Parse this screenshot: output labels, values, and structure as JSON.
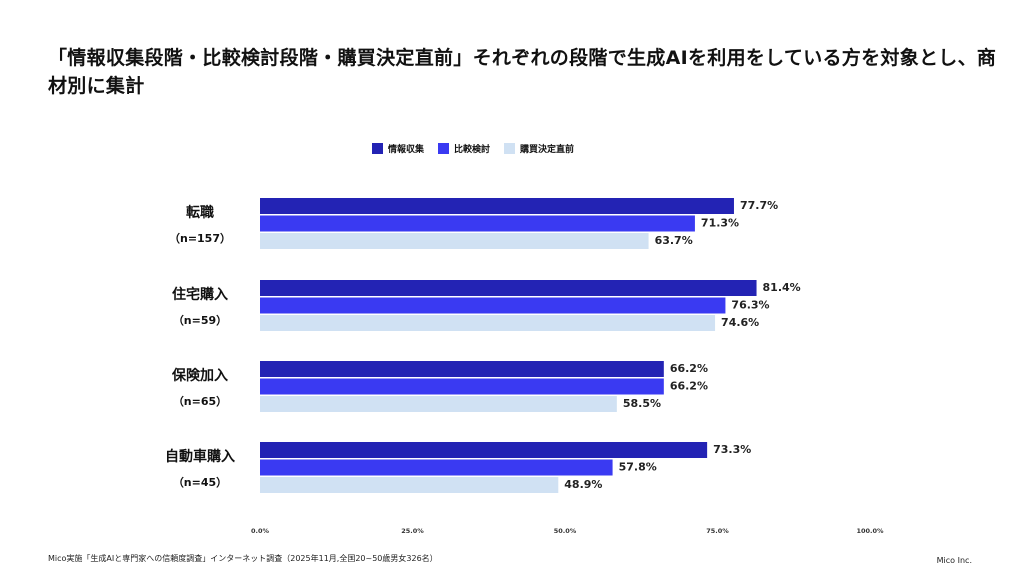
{
  "title": "「情報収集段階・比較検討段階・購買決定直前」それぞれの段階で生成AIを利用をしている方を対象とし、商材別に集計",
  "footer": "Mico実施「生成AIと専門家への信頼度調査」インターネット調査（2025年11月,全国20~50歳男女326名）",
  "brand": "Mico Inc.",
  "chart_data": {
    "type": "bar",
    "orientation": "horizontal",
    "categories": [
      "転職",
      "住宅購入",
      "保険加入",
      "自動車購入"
    ],
    "sample_sizes": [
      "（n=157）",
      "（n=59）",
      "（n=65）",
      "（n=45）"
    ],
    "series": [
      {
        "name": "情報収集",
        "color": "#2323b4",
        "values": [
          77.7,
          81.4,
          66.2,
          73.3
        ]
      },
      {
        "name": "比較検討",
        "color": "#3a3af2",
        "values": [
          71.3,
          76.3,
          66.2,
          57.8
        ]
      },
      {
        "name": "購買決定直前",
        "color": "#d0e1f3",
        "values": [
          63.7,
          74.6,
          58.5,
          48.9
        ]
      }
    ],
    "xlim": [
      0,
      100
    ],
    "xticks": [
      "0.0%",
      "25.0%",
      "50.0%",
      "75.0%",
      "100.0%"
    ],
    "grid": false,
    "legend": "top-center",
    "value_suffix": "%"
  }
}
